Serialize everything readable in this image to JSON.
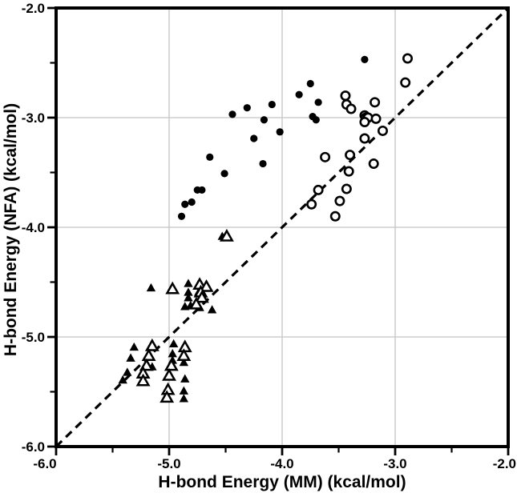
{
  "chart_data": {
    "type": "scatter",
    "title": "",
    "xlabel": "H-bond Energy (MM) (kcal/mol)",
    "ylabel": "H-bond Energy (NFA) (kcal/mol)",
    "xlim": [
      -6.0,
      -2.0
    ],
    "ylim": [
      -6.0,
      -2.0
    ],
    "x_tick_values": [
      -6,
      -5,
      -4,
      -3,
      -2
    ],
    "x_tick_labels": [
      "-6.0",
      "-5.0",
      "-4.0",
      "-3.0",
      "-2.0"
    ],
    "y_tick_values": [
      -6,
      -5,
      -4,
      -3,
      -2
    ],
    "y_tick_labels": [
      "-6.0",
      "-5.0",
      "-4.0",
      "-3.0",
      "-2.0"
    ],
    "minor_x_ticks": [
      -5.5,
      -4.5,
      -3.5,
      -2.5
    ],
    "minor_y_ticks": [
      -5.5,
      -4.5,
      -3.5,
      -2.5
    ],
    "grid": true,
    "grid_color": "#c4c4c4",
    "axis_color": "#000000",
    "background_color": "#ffffff",
    "legend": "none",
    "identity_line": {
      "x1": -6,
      "y1": -6,
      "x2": -2,
      "y2": -2,
      "style": "dashed",
      "color": "#000000"
    },
    "series": [
      {
        "name": "filled-circles",
        "marker": "circle-filled",
        "color": "#000000",
        "points": [
          [
            -3.27,
            -2.47
          ],
          [
            -3.75,
            -2.69
          ],
          [
            -3.85,
            -2.79
          ],
          [
            -3.68,
            -2.86
          ],
          [
            -4.09,
            -2.88
          ],
          [
            -4.31,
            -2.91
          ],
          [
            -4.44,
            -2.97
          ],
          [
            -3.73,
            -2.99
          ],
          [
            -4.16,
            -3.02
          ],
          [
            -3.7,
            -3.02
          ],
          [
            -4.02,
            -3.13
          ],
          [
            -4.25,
            -3.19
          ],
          [
            -4.64,
            -3.36
          ],
          [
            -4.17,
            -3.42
          ],
          [
            -4.51,
            -3.51
          ],
          [
            -4.75,
            -3.66
          ],
          [
            -4.71,
            -3.66
          ],
          [
            -4.8,
            -3.77
          ],
          [
            -4.86,
            -3.79
          ],
          [
            -4.89,
            -3.9
          ]
        ]
      },
      {
        "name": "filled-triangles",
        "marker": "triangle-filled",
        "color": "#000000",
        "points": [
          [
            -4.53,
            -4.08
          ],
          [
            -5.16,
            -4.55
          ],
          [
            -4.83,
            -4.51
          ],
          [
            -4.83,
            -4.59
          ],
          [
            -4.74,
            -4.59
          ],
          [
            -4.71,
            -4.63
          ],
          [
            -4.83,
            -4.64
          ],
          [
            -4.86,
            -4.72
          ],
          [
            -4.81,
            -4.71
          ],
          [
            -4.73,
            -4.73
          ],
          [
            -4.62,
            -4.75
          ],
          [
            -5.31,
            -5.09
          ],
          [
            -5.34,
            -5.19
          ],
          [
            -5.37,
            -5.32
          ],
          [
            -5.41,
            -5.39
          ],
          [
            -5.15,
            -5.27
          ],
          [
            -4.96,
            -5.06
          ],
          [
            -4.97,
            -5.15
          ],
          [
            -4.97,
            -5.21
          ],
          [
            -4.87,
            -5.23
          ],
          [
            -4.86,
            -5.38
          ],
          [
            -4.87,
            -5.49
          ],
          [
            -4.87,
            -5.56
          ]
        ]
      },
      {
        "name": "open-circles",
        "marker": "circle-open",
        "color": "#000000",
        "points": [
          [
            -2.89,
            -2.46
          ],
          [
            -2.91,
            -2.68
          ],
          [
            -3.44,
            -2.8
          ],
          [
            -3.18,
            -2.86
          ],
          [
            -3.43,
            -2.88
          ],
          [
            -3.39,
            -2.92
          ],
          [
            -3.27,
            -2.98
          ],
          [
            -3.26,
            -3.0
          ],
          [
            -3.24,
            -3.0
          ],
          [
            -3.17,
            -3.01
          ],
          [
            -3.27,
            -3.04
          ],
          [
            -3.11,
            -3.12
          ],
          [
            -3.27,
            -3.19
          ],
          [
            -3.4,
            -3.34
          ],
          [
            -3.62,
            -3.36
          ],
          [
            -3.19,
            -3.42
          ],
          [
            -3.41,
            -3.49
          ],
          [
            -3.43,
            -3.65
          ],
          [
            -3.68,
            -3.66
          ],
          [
            -3.49,
            -3.76
          ],
          [
            -3.74,
            -3.79
          ],
          [
            -3.53,
            -3.9
          ]
        ]
      },
      {
        "name": "open-triangles",
        "marker": "triangle-open",
        "color": "#000000",
        "points": [
          [
            -4.49,
            -4.08
          ],
          [
            -4.97,
            -4.56
          ],
          [
            -4.73,
            -4.52
          ],
          [
            -4.67,
            -4.54
          ],
          [
            -4.72,
            -4.59
          ],
          [
            -4.71,
            -4.64
          ],
          [
            -4.76,
            -4.7
          ],
          [
            -5.15,
            -5.08
          ],
          [
            -5.18,
            -5.17
          ],
          [
            -5.2,
            -5.26
          ],
          [
            -5.23,
            -5.33
          ],
          [
            -5.23,
            -5.4
          ],
          [
            -4.98,
            -5.26
          ],
          [
            -5.0,
            -5.35
          ],
          [
            -5.01,
            -5.48
          ],
          [
            -5.02,
            -5.55
          ],
          [
            -4.86,
            -5.09
          ],
          [
            -4.87,
            -5.17
          ]
        ]
      }
    ]
  }
}
